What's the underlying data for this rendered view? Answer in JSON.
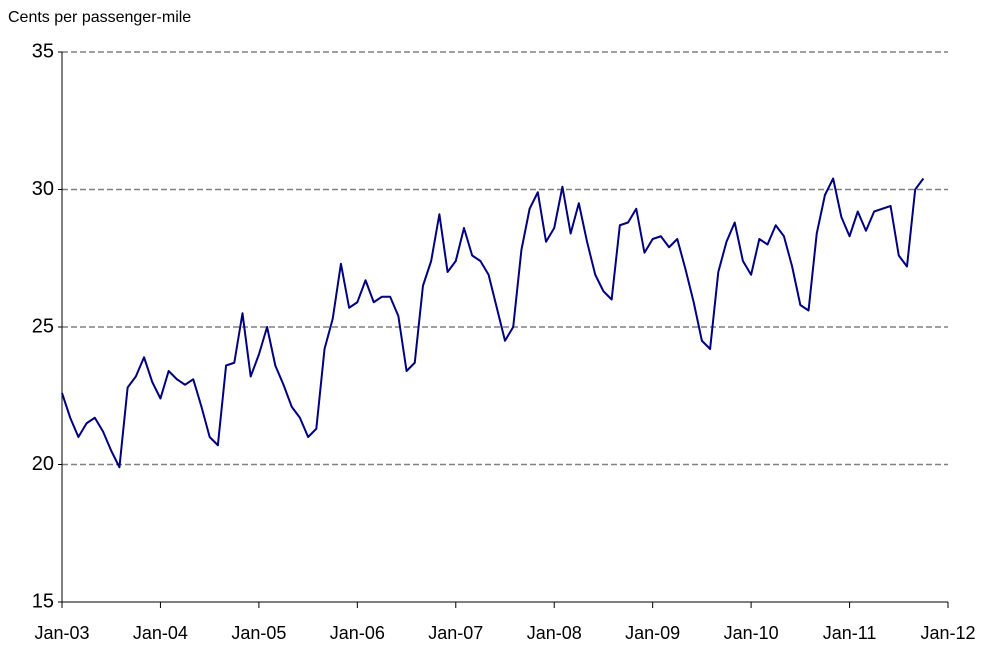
{
  "chart_data": {
    "type": "line",
    "y_label": "Cents per passenger-mile",
    "x": [
      "2003-01",
      "2003-02",
      "2003-03",
      "2003-04",
      "2003-05",
      "2003-06",
      "2003-07",
      "2003-08",
      "2003-09",
      "2003-10",
      "2003-11",
      "2003-12",
      "2004-01",
      "2004-02",
      "2004-03",
      "2004-04",
      "2004-05",
      "2004-06",
      "2004-07",
      "2004-08",
      "2004-09",
      "2004-10",
      "2004-11",
      "2004-12",
      "2005-01",
      "2005-02",
      "2005-03",
      "2005-04",
      "2005-05",
      "2005-06",
      "2005-07",
      "2005-08",
      "2005-09",
      "2005-10",
      "2005-11",
      "2005-12",
      "2006-01",
      "2006-02",
      "2006-03",
      "2006-04",
      "2006-05",
      "2006-06",
      "2006-07",
      "2006-08",
      "2006-09",
      "2006-10",
      "2006-11",
      "2006-12",
      "2007-01",
      "2007-02",
      "2007-03",
      "2007-04",
      "2007-05",
      "2007-06",
      "2007-07",
      "2007-08",
      "2007-09",
      "2007-10",
      "2007-11",
      "2007-12",
      "2008-01",
      "2008-02",
      "2008-03",
      "2008-04",
      "2008-05",
      "2008-06",
      "2008-07",
      "2008-08",
      "2008-09",
      "2008-10",
      "2008-11",
      "2008-12",
      "2009-01",
      "2009-02",
      "2009-03",
      "2009-04",
      "2009-05",
      "2009-06",
      "2009-07",
      "2009-08",
      "2009-09",
      "2009-10",
      "2009-11",
      "2009-12",
      "2010-01",
      "2010-02",
      "2010-03",
      "2010-04",
      "2010-05",
      "2010-06",
      "2010-07",
      "2010-08",
      "2010-09",
      "2010-10",
      "2010-11",
      "2010-12",
      "2011-01",
      "2011-02",
      "2011-03",
      "2011-04",
      "2011-05",
      "2011-06",
      "2011-07",
      "2011-08",
      "2011-09",
      "2011-10"
    ],
    "series": [
      {
        "name": "Cents per passenger-mile",
        "color": "#000080",
        "values": [
          22.6,
          21.7,
          21.0,
          21.5,
          21.7,
          21.2,
          20.5,
          19.9,
          22.8,
          23.2,
          23.9,
          23.0,
          22.4,
          23.4,
          23.1,
          22.9,
          23.1,
          22.1,
          21.0,
          20.7,
          23.6,
          23.7,
          25.5,
          23.2,
          24.0,
          25.0,
          23.6,
          22.9,
          22.1,
          21.7,
          21.0,
          21.3,
          24.2,
          25.3,
          27.3,
          25.7,
          25.9,
          26.7,
          25.9,
          26.1,
          26.1,
          25.4,
          23.4,
          23.7,
          26.5,
          27.4,
          29.1,
          27.0,
          27.4,
          28.6,
          27.6,
          27.4,
          26.9,
          25.7,
          24.5,
          25.0,
          27.8,
          29.3,
          29.9,
          28.1,
          28.6,
          30.1,
          28.4,
          29.5,
          28.1,
          26.9,
          26.3,
          26.0,
          28.7,
          28.8,
          29.3,
          27.7,
          28.2,
          28.3,
          27.9,
          28.2,
          27.1,
          25.9,
          24.5,
          24.2,
          27.0,
          28.1,
          28.8,
          27.4,
          26.9,
          28.2,
          28.0,
          28.7,
          28.3,
          27.2,
          25.8,
          25.6,
          28.4,
          29.8,
          30.4,
          29.0,
          28.3,
          29.2,
          28.5,
          29.2,
          29.3,
          29.4,
          27.6,
          27.2,
          30.0,
          30.4
        ]
      }
    ],
    "xlim": [
      "2003-01",
      "2012-01"
    ],
    "xticks": [
      {
        "value": "2003-01",
        "label": "Jan-03"
      },
      {
        "value": "2004-01",
        "label": "Jan-04"
      },
      {
        "value": "2005-01",
        "label": "Jan-05"
      },
      {
        "value": "2006-01",
        "label": "Jan-06"
      },
      {
        "value": "2007-01",
        "label": "Jan-07"
      },
      {
        "value": "2008-01",
        "label": "Jan-08"
      },
      {
        "value": "2009-01",
        "label": "Jan-09"
      },
      {
        "value": "2010-01",
        "label": "Jan-10"
      },
      {
        "value": "2011-01",
        "label": "Jan-11"
      },
      {
        "value": "2012-01",
        "label": "Jan-12"
      }
    ],
    "ylim": [
      15,
      35
    ],
    "yticks": [
      15,
      20,
      25,
      30,
      35
    ],
    "grid": true
  }
}
